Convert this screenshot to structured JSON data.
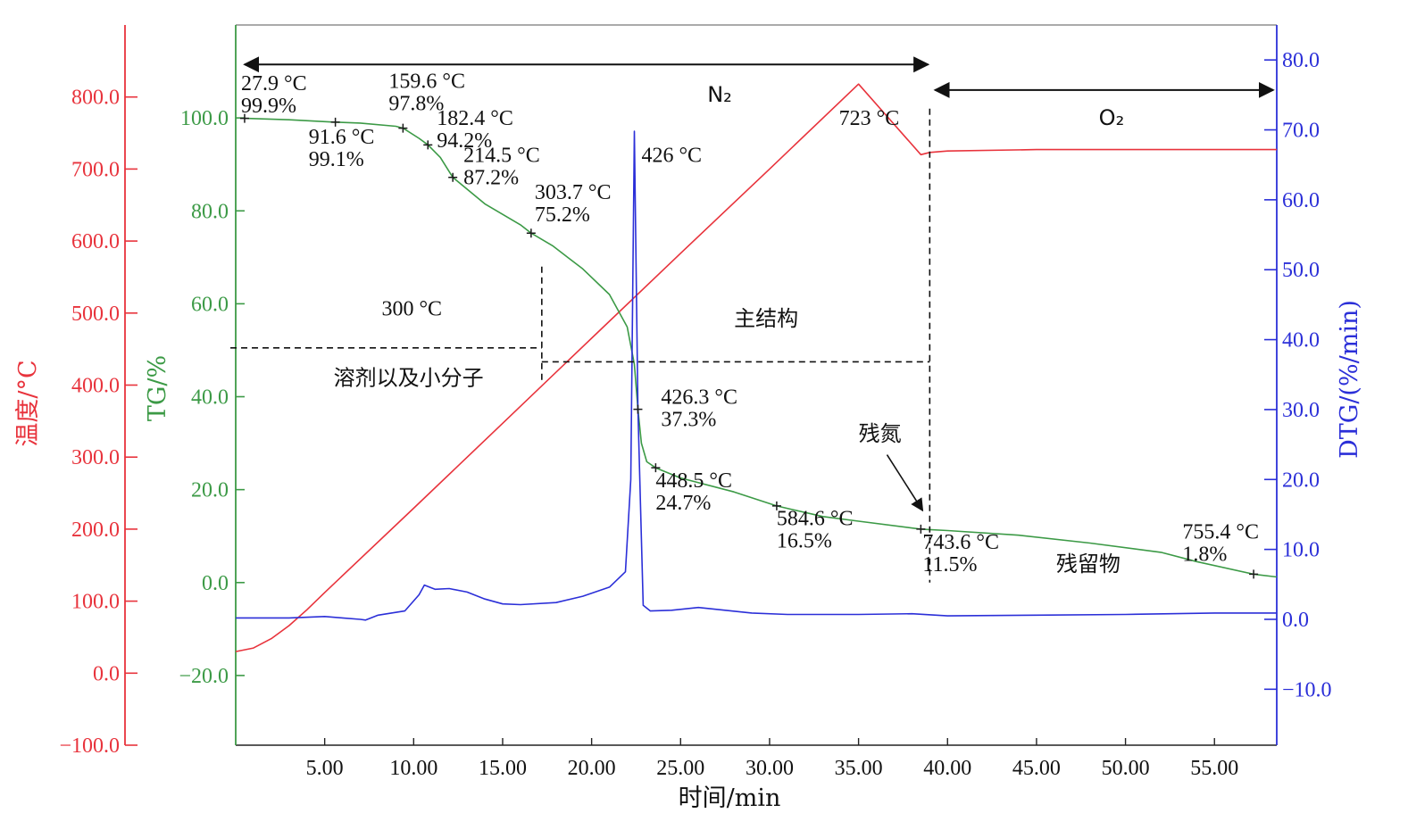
{
  "chart_data": {
    "type": "line",
    "title": "",
    "colors": {
      "temperature": "#e8333c",
      "tg": "#3c9a46",
      "dtg": "#2b2fd8",
      "annotation": "#111111"
    },
    "x": {
      "label": "时间/min",
      "range": [
        0,
        58.5
      ],
      "ticks": [
        5,
        10,
        15,
        20,
        25,
        30,
        35,
        40,
        45,
        50,
        55
      ],
      "tick_labels": [
        "5.00",
        "10.00",
        "15.00",
        "20.00",
        "25.00",
        "30.00",
        "35.00",
        "40.00",
        "45.00",
        "50.00",
        "55.00"
      ]
    },
    "axes": {
      "temperature": {
        "label": "温度/°C",
        "range": [
          -100,
          900
        ],
        "ticks": [
          -100,
          0,
          100,
          200,
          300,
          400,
          500,
          600,
          700,
          800
        ],
        "tick_labels": [
          "−100.0",
          "0.0",
          "100.0",
          "200.0",
          "300.0",
          "400.0",
          "500.0",
          "600.0",
          "700.0",
          "800.0"
        ]
      },
      "tg": {
        "label": "TG/%",
        "range": [
          -35,
          120
        ],
        "ticks": [
          -20,
          0,
          20,
          40,
          60,
          80,
          100
        ],
        "tick_labels": [
          "−20.0",
          "0.0",
          "20.0",
          "40.0",
          "60.0",
          "80.0",
          "100.0"
        ]
      },
      "dtg": {
        "label": "DTG/(%/min)",
        "range": [
          -18,
          85
        ],
        "ticks": [
          -10,
          0,
          10,
          20,
          30,
          40,
          50,
          60,
          70,
          80
        ],
        "tick_labels": [
          "−10.0",
          "0.0",
          "10.0",
          "20.0",
          "30.0",
          "40.0",
          "50.0",
          "60.0",
          "70.0",
          "80.0"
        ]
      }
    },
    "series": [
      {
        "key": "temperature",
        "axis": "temperature",
        "points": [
          [
            0,
            30
          ],
          [
            1,
            35
          ],
          [
            2,
            48
          ],
          [
            3,
            66
          ],
          [
            4,
            88
          ],
          [
            5,
            112
          ],
          [
            10,
            229
          ],
          [
            15,
            347
          ],
          [
            20,
            465
          ],
          [
            25,
            583
          ],
          [
            30,
            700
          ],
          [
            35,
            818
          ],
          [
            38.5,
            720
          ],
          [
            39,
            723
          ],
          [
            40,
            725
          ],
          [
            45,
            727
          ],
          [
            50,
            727
          ],
          [
            58.5,
            727
          ]
        ]
      },
      {
        "key": "tg",
        "axis": "tg",
        "points": [
          [
            0.5,
            99.9
          ],
          [
            3,
            99.6
          ],
          [
            5.5,
            99.1
          ],
          [
            7,
            98.9
          ],
          [
            9,
            98.2
          ],
          [
            9.4,
            97.8
          ],
          [
            10.3,
            95.6
          ],
          [
            10.8,
            94.2
          ],
          [
            11.5,
            91.5
          ],
          [
            12.2,
            87.2
          ],
          [
            14,
            81.5
          ],
          [
            16,
            77
          ],
          [
            16.6,
            75.2
          ],
          [
            17.8,
            72.5
          ],
          [
            19.5,
            67.5
          ],
          [
            21,
            62
          ],
          [
            22,
            55
          ],
          [
            22.4,
            47
          ],
          [
            22.6,
            37.3
          ],
          [
            22.8,
            30
          ],
          [
            23.1,
            26
          ],
          [
            23.6,
            24.7
          ],
          [
            25,
            22.5
          ],
          [
            28,
            19.5
          ],
          [
            30.4,
            16.5
          ],
          [
            33,
            14.2
          ],
          [
            35,
            13.2
          ],
          [
            38.5,
            11.5
          ],
          [
            40,
            11.2
          ],
          [
            44,
            10.2
          ],
          [
            48,
            8.5
          ],
          [
            52,
            6.5
          ],
          [
            54,
            4.5
          ],
          [
            57.2,
            1.8
          ],
          [
            58.5,
            1.2
          ]
        ]
      },
      {
        "key": "dtg",
        "axis": "dtg",
        "points": [
          [
            0,
            0.2
          ],
          [
            3,
            0.2
          ],
          [
            5,
            0.4
          ],
          [
            6,
            0.2
          ],
          [
            7,
            0
          ],
          [
            7.3,
            -0.1
          ],
          [
            8,
            0.6
          ],
          [
            9.5,
            1.2
          ],
          [
            10.3,
            3.5
          ],
          [
            10.6,
            4.9
          ],
          [
            11.2,
            4.3
          ],
          [
            12,
            4.4
          ],
          [
            13,
            3.9
          ],
          [
            14,
            2.9
          ],
          [
            15,
            2.2
          ],
          [
            16,
            2.1
          ],
          [
            18,
            2.4
          ],
          [
            19.5,
            3.3
          ],
          [
            21,
            4.6
          ],
          [
            21.9,
            6.8
          ],
          [
            22.2,
            20
          ],
          [
            22.4,
            69.8
          ],
          [
            22.6,
            30
          ],
          [
            22.9,
            2
          ],
          [
            23.3,
            1.2
          ],
          [
            24.5,
            1.3
          ],
          [
            26,
            1.7
          ],
          [
            27.5,
            1.3
          ],
          [
            29,
            0.9
          ],
          [
            31,
            0.7
          ],
          [
            35,
            0.7
          ],
          [
            38,
            0.8
          ],
          [
            40,
            0.5
          ],
          [
            45,
            0.6
          ],
          [
            50,
            0.7
          ],
          [
            55,
            0.9
          ],
          [
            58.5,
            0.9
          ]
        ]
      }
    ],
    "markers": [
      {
        "x": 0.5,
        "y": 99.9,
        "t1": "27.9 °C",
        "t2": "99.9%",
        "lx": 0.3,
        "ly": 106
      },
      {
        "x": 5.6,
        "y": 99.1,
        "t1": "91.6 °C",
        "t2": "99.1%",
        "lx": 4.1,
        "ly": 94.5
      },
      {
        "x": 9.4,
        "y": 97.8,
        "t1": "159.6 °C",
        "t2": "97.8%",
        "lx": 8.6,
        "ly": 106.5
      },
      {
        "x": 10.8,
        "y": 94.2,
        "t1": "182.4 °C",
        "t2": "94.2%",
        "lx": 11.3,
        "ly": 98.5
      },
      {
        "x": 12.2,
        "y": 87.2,
        "t1": "214.5 °C",
        "t2": "87.2%",
        "lx": 12.8,
        "ly": 90.5
      },
      {
        "x": 16.6,
        "y": 75.2,
        "t1": "303.7 °C",
        "t2": "75.2%",
        "lx": 16.8,
        "ly": 82.5
      },
      {
        "x": 22.6,
        "y": 37.3,
        "t1": "426.3 °C",
        "t2": "37.3%",
        "lx": 23.9,
        "ly": 38.5
      },
      {
        "x": 23.6,
        "y": 24.7,
        "t1": "448.5 °C",
        "t2": "24.7%",
        "lx": 23.6,
        "ly": 20.5
      },
      {
        "x": 30.4,
        "y": 16.5,
        "t1": "584.6 °C",
        "t2": "16.5%",
        "lx": 30.4,
        "ly": 12.3
      },
      {
        "x": 38.5,
        "y": 11.5,
        "t1": "743.6 °C",
        "t2": "11.5%",
        "lx": 38.6,
        "ly": 7.3
      },
      {
        "x": 57.2,
        "y": 1.8,
        "t1": "755.4 °C",
        "t2": "1.8%",
        "lx": 53.2,
        "ly": 9.5
      }
    ],
    "annotations": {
      "n2": "N₂",
      "o2": "O₂",
      "t723": "723 °C",
      "t426": "426 °C",
      "t300": "300 °C",
      "solvent": "溶剂以及小分子",
      "main_structure": "主结构",
      "residual_nitrogen": "残氮",
      "residue": "残留物"
    }
  }
}
